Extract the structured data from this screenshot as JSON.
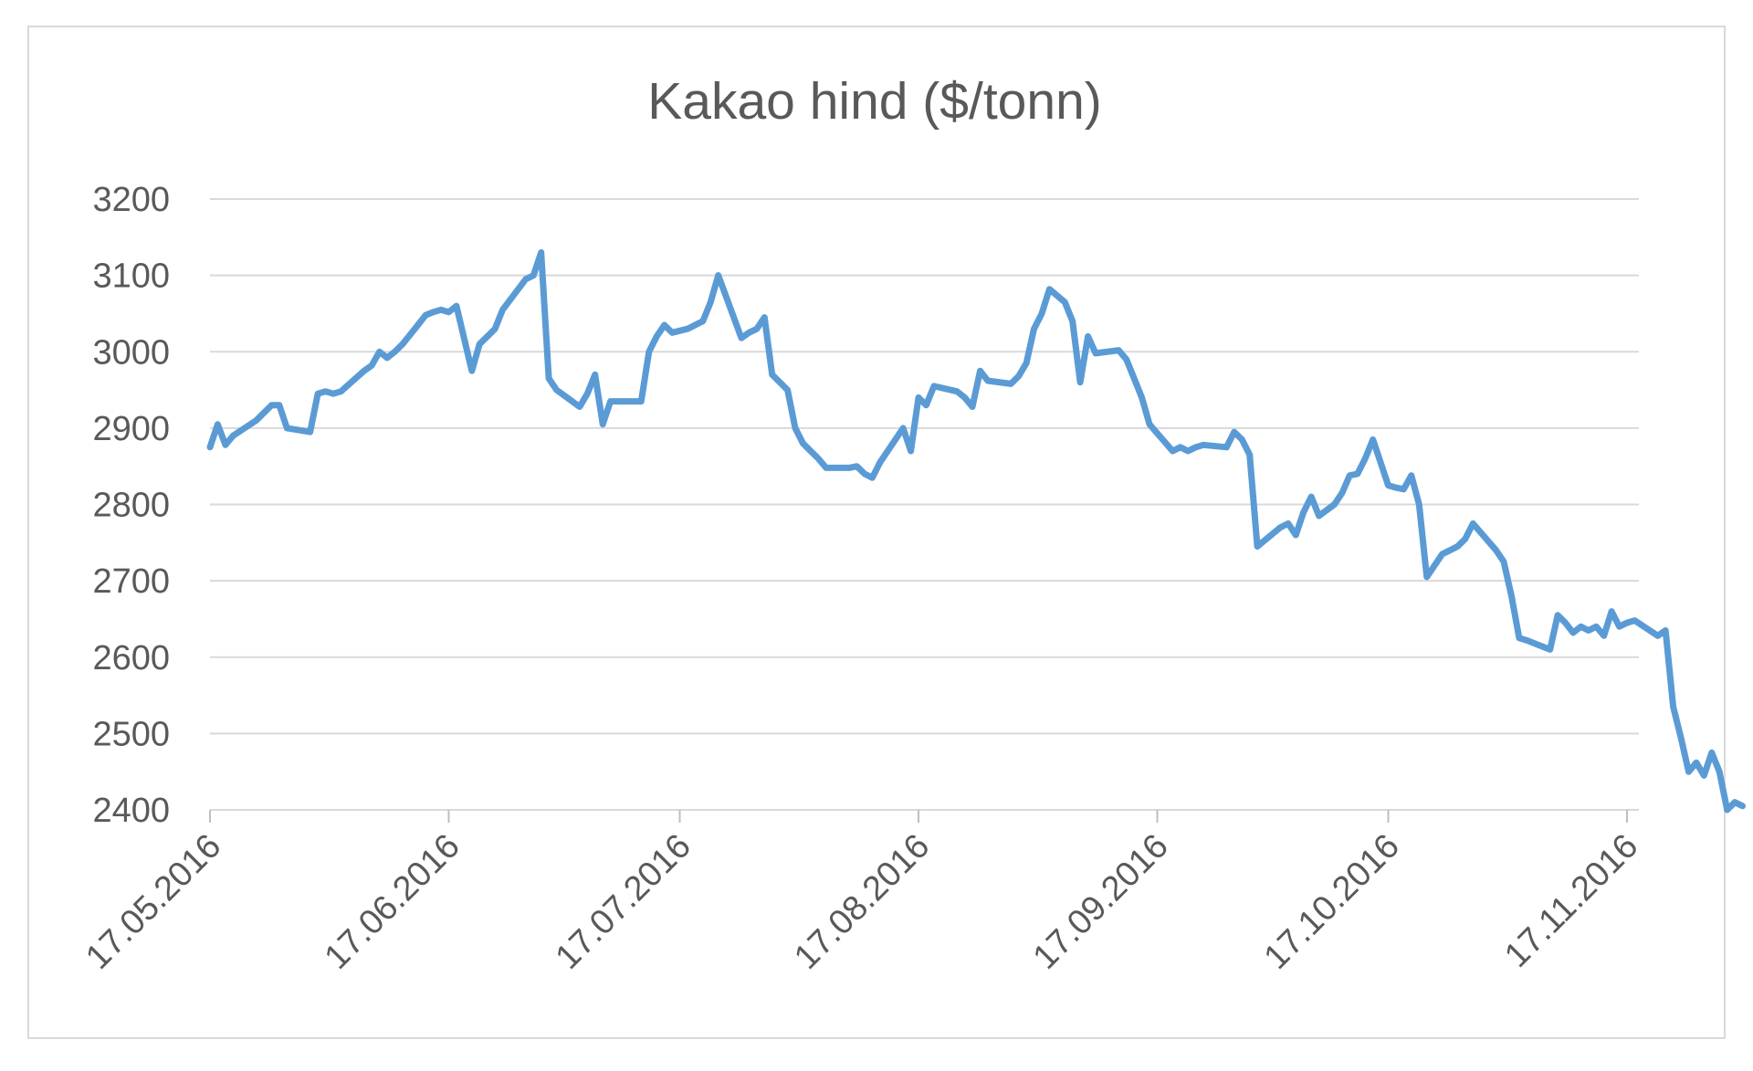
{
  "chart_data": {
    "type": "line",
    "title": "Kakao hind ($/tonn)",
    "xlabel": "",
    "ylabel": "",
    "ylim": [
      2400,
      3200
    ],
    "yticks": [
      2400,
      2500,
      2600,
      2700,
      2800,
      2900,
      3000,
      3100,
      3200
    ],
    "xticks": [
      "17.05.2016",
      "17.06.2016",
      "17.07.2016",
      "17.08.2016",
      "17.09.2016",
      "17.10.2016",
      "17.11.2016"
    ],
    "xlim": [
      "17.05.2016",
      "18.11.2016"
    ],
    "grid": true,
    "legend": "none",
    "series": [
      {
        "color": "#5b9bd5",
        "points": [
          [
            "17.05.2016",
            2875
          ],
          [
            "18.05.2016",
            2905
          ],
          [
            "19.05.2016",
            2878
          ],
          [
            "20.05.2016",
            2890
          ],
          [
            "23.05.2016",
            2910
          ],
          [
            "24.05.2016",
            2920
          ],
          [
            "25.05.2016",
            2930
          ],
          [
            "26.05.2016",
            2930
          ],
          [
            "27.05.2016",
            2900
          ],
          [
            "30.05.2016",
            2895
          ],
          [
            "31.05.2016",
            2945
          ],
          [
            "01.06.2016",
            2948
          ],
          [
            "02.06.2016",
            2945
          ],
          [
            "03.06.2016",
            2948
          ],
          [
            "06.06.2016",
            2975
          ],
          [
            "07.06.2016",
            2982
          ],
          [
            "08.06.2016",
            3000
          ],
          [
            "09.06.2016",
            2992
          ],
          [
            "10.06.2016",
            3000
          ],
          [
            "11.06.2016",
            3010
          ],
          [
            "13.06.2016",
            3035
          ],
          [
            "14.06.2016",
            3048
          ],
          [
            "15.06.2016",
            3052
          ],
          [
            "16.06.2016",
            3055
          ],
          [
            "17.06.2016",
            3052
          ],
          [
            "18.06.2016",
            3060
          ],
          [
            "20.06.2016",
            2975
          ],
          [
            "21.06.2016",
            3010
          ],
          [
            "23.06.2016",
            3030
          ],
          [
            "24.06.2016",
            3055
          ],
          [
            "27.06.2016",
            3095
          ],
          [
            "28.06.2016",
            3100
          ],
          [
            "29.06.2016",
            3130
          ],
          [
            "30.06.2016",
            2965
          ],
          [
            "01.07.2016",
            2950
          ],
          [
            "04.07.2016",
            2928
          ],
          [
            "05.07.2016",
            2945
          ],
          [
            "06.07.2016",
            2970
          ],
          [
            "07.07.2016",
            2905
          ],
          [
            "08.07.2016",
            2935
          ],
          [
            "11.07.2016",
            2935
          ],
          [
            "12.07.2016",
            2935
          ],
          [
            "13.07.2016",
            3000
          ],
          [
            "14.07.2016",
            3020
          ],
          [
            "15.07.2016",
            3035
          ],
          [
            "16.07.2016",
            3025
          ],
          [
            "18.07.2016",
            3030
          ],
          [
            "19.07.2016",
            3035
          ],
          [
            "20.07.2016",
            3040
          ],
          [
            "21.07.2016",
            3065
          ],
          [
            "22.07.2016",
            3100
          ],
          [
            "25.07.2016",
            3018
          ],
          [
            "26.07.2016",
            3025
          ],
          [
            "27.07.2016",
            3030
          ],
          [
            "28.07.2016",
            3045
          ],
          [
            "29.07.2016",
            2970
          ],
          [
            "31.07.2016",
            2950
          ],
          [
            "01.08.2016",
            2900
          ],
          [
            "02.08.2016",
            2880
          ],
          [
            "03.08.2016",
            2870
          ],
          [
            "04.08.2016",
            2860
          ],
          [
            "05.08.2016",
            2848
          ],
          [
            "08.08.2016",
            2848
          ],
          [
            "09.08.2016",
            2850
          ],
          [
            "10.08.2016",
            2840
          ],
          [
            "11.08.2016",
            2835
          ],
          [
            "12.08.2016",
            2855
          ],
          [
            "15.08.2016",
            2900
          ],
          [
            "16.08.2016",
            2870
          ],
          [
            "17.08.2016",
            2940
          ],
          [
            "18.08.2016",
            2930
          ],
          [
            "19.08.2016",
            2955
          ],
          [
            "22.08.2016",
            2948
          ],
          [
            "23.08.2016",
            2940
          ],
          [
            "24.08.2016",
            2928
          ],
          [
            "25.08.2016",
            2975
          ],
          [
            "26.08.2016",
            2962
          ],
          [
            "29.08.2016",
            2958
          ],
          [
            "30.08.2016",
            2968
          ],
          [
            "31.08.2016",
            2985
          ],
          [
            "01.09.2016",
            3030
          ],
          [
            "02.09.2016",
            3050
          ],
          [
            "03.09.2016",
            3082
          ],
          [
            "05.09.2016",
            3065
          ],
          [
            "06.09.2016",
            3040
          ],
          [
            "07.09.2016",
            2960
          ],
          [
            "08.09.2016",
            3020
          ],
          [
            "09.09.2016",
            2998
          ],
          [
            "12.09.2016",
            3002
          ],
          [
            "13.09.2016",
            2990
          ],
          [
            "14.09.2016",
            2965
          ],
          [
            "15.09.2016",
            2940
          ],
          [
            "16.09.2016",
            2905
          ],
          [
            "19.09.2016",
            2870
          ],
          [
            "20.09.2016",
            2875
          ],
          [
            "21.09.2016",
            2870
          ],
          [
            "22.09.2016",
            2875
          ],
          [
            "23.09.2016",
            2878
          ],
          [
            "26.09.2016",
            2875
          ],
          [
            "27.09.2016",
            2895
          ],
          [
            "28.09.2016",
            2885
          ],
          [
            "29.09.2016",
            2865
          ],
          [
            "30.09.2016",
            2745
          ],
          [
            "03.10.2016",
            2770
          ],
          [
            "04.10.2016",
            2775
          ],
          [
            "05.10.2016",
            2760
          ],
          [
            "06.10.2016",
            2790
          ],
          [
            "07.10.2016",
            2810
          ],
          [
            "08.10.2016",
            2785
          ],
          [
            "10.10.2016",
            2800
          ],
          [
            "11.10.2016",
            2815
          ],
          [
            "12.10.2016",
            2838
          ],
          [
            "13.10.2016",
            2840
          ],
          [
            "14.10.2016",
            2860
          ],
          [
            "15.10.2016",
            2885
          ],
          [
            "17.10.2016",
            2825
          ],
          [
            "18.10.2016",
            2822
          ],
          [
            "19.10.2016",
            2820
          ],
          [
            "20.10.2016",
            2838
          ],
          [
            "21.10.2016",
            2800
          ],
          [
            "22.10.2016",
            2705
          ],
          [
            "24.10.2016",
            2735
          ],
          [
            "25.10.2016",
            2740
          ],
          [
            "26.10.2016",
            2745
          ],
          [
            "27.10.2016",
            2755
          ],
          [
            "28.10.2016",
            2775
          ],
          [
            "31.10.2016",
            2740
          ],
          [
            "01.11.2016",
            2725
          ],
          [
            "02.11.2016",
            2680
          ],
          [
            "03.11.2016",
            2625
          ],
          [
            "04.11.2016",
            2622
          ],
          [
            "07.11.2016",
            2610
          ],
          [
            "08.11.2016",
            2655
          ],
          [
            "09.11.2016",
            2645
          ],
          [
            "10.11.2016",
            2632
          ],
          [
            "11.11.2016",
            2640
          ],
          [
            "12.11.2016",
            2635
          ],
          [
            "13.11.2016",
            2640
          ],
          [
            "14.11.2016",
            2628
          ],
          [
            "15.11.2016",
            2660
          ],
          [
            "16.11.2016",
            2640
          ],
          [
            "17.11.2016",
            2645
          ],
          [
            "18.11.2016",
            2648
          ],
          [
            "21.11.2016",
            2628
          ],
          [
            "22.11.2016",
            2635
          ],
          [
            "23.11.2016",
            2535
          ],
          [
            "24.11.2016",
            2495
          ],
          [
            "25.11.2016",
            2450
          ],
          [
            "26.11.2016",
            2462
          ],
          [
            "27.11.2016",
            2445
          ],
          [
            "28.11.2016",
            2475
          ],
          [
            "29.11.2016",
            2450
          ],
          [
            "30.11.2016",
            2400
          ],
          [
            "01.12.2016",
            2410
          ],
          [
            "02.12.2016",
            2405
          ]
        ]
      }
    ]
  }
}
